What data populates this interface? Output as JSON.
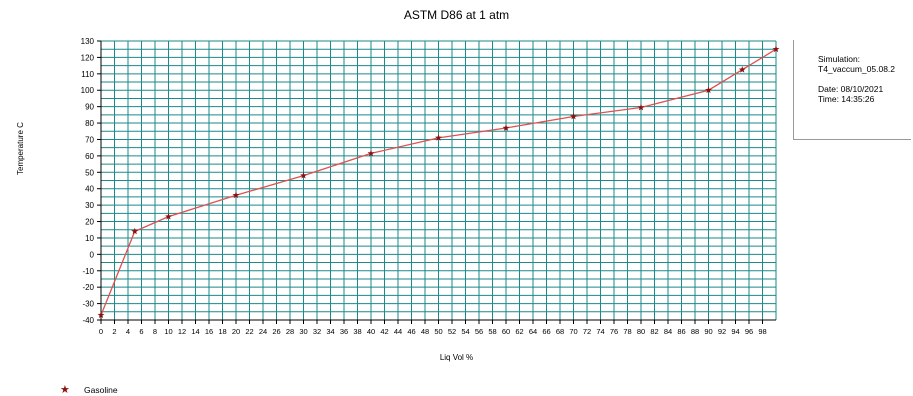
{
  "chart_data": {
    "type": "line",
    "title": "ASTM D86 at 1 atm",
    "xlabel": "Liq Vol %",
    "ylabel": "Temperature C",
    "xlim": [
      0,
      100
    ],
    "ylim": [
      -40,
      130
    ],
    "xticks": [
      0,
      2,
      4,
      6,
      8,
      10,
      12,
      14,
      16,
      18,
      20,
      22,
      24,
      26,
      28,
      30,
      32,
      34,
      36,
      38,
      40,
      42,
      44,
      46,
      48,
      50,
      52,
      54,
      56,
      58,
      60,
      62,
      64,
      66,
      68,
      70,
      72,
      74,
      76,
      78,
      80,
      82,
      84,
      86,
      88,
      90,
      92,
      94,
      96,
      98
    ],
    "yticks": [
      -40,
      -30,
      -20,
      -10,
      0,
      10,
      20,
      30,
      40,
      50,
      60,
      70,
      80,
      90,
      100,
      110,
      120,
      130
    ],
    "grid": true,
    "grid_color": "#1a8a8a",
    "line_color": "#e05050",
    "marker_color": "#8a1212",
    "series": [
      {
        "name": "Gasoline",
        "x": [
          0,
          5,
          10,
          20,
          30,
          40,
          50,
          60,
          70,
          80,
          90,
          95,
          100
        ],
        "y": [
          -37,
          14,
          23,
          36,
          48,
          61.5,
          71,
          77,
          84,
          89.5,
          100,
          112.5,
          125
        ]
      }
    ],
    "legend_position": "bottom-left"
  },
  "info": {
    "simulation_label": "Simulation:",
    "simulation_value": "T4_vaccum_05.08.2",
    "date": "Date: 08/10/2021",
    "time": "Time: 14:35:26"
  }
}
